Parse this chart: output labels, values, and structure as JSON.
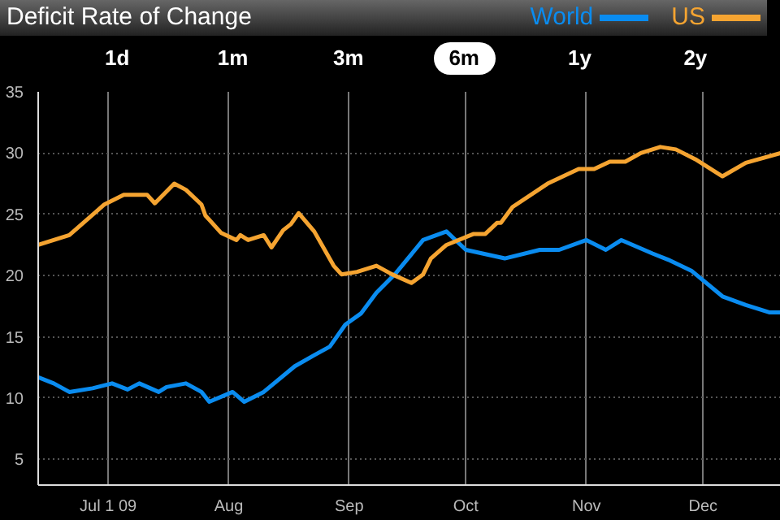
{
  "chart_data": {
    "type": "line",
    "title": "Deficit Rate of Change",
    "annotations": [
      "1d",
      "1m",
      "3m",
      "6m",
      "1y",
      "2y"
    ],
    "xlim": [
      "2009-06-13",
      "2009-12-21"
    ],
    "xticks": [
      {
        "value": "2009-07-01",
        "label": "Jul 1 09"
      },
      {
        "value": "2009-08-01",
        "label": "Aug"
      },
      {
        "value": "2009-09-01",
        "label": "Sep"
      },
      {
        "value": "2009-10-01",
        "label": "Oct"
      },
      {
        "value": "2009-11-01",
        "label": "Nov"
      },
      {
        "value": "2009-12-01",
        "label": "Dec"
      }
    ],
    "ylim": [
      2.9,
      35
    ],
    "yticks": [
      5,
      10,
      15,
      20,
      25,
      30,
      35
    ],
    "grid": true,
    "legend": "top right",
    "line_style": "solid",
    "series": [
      {
        "name": "World",
        "color": "#0a8cf0",
        "x": [
          "2009-06-13",
          "2009-06-17",
          "2009-06-21",
          "2009-06-27",
          "2009-07-02",
          "2009-07-06",
          "2009-07-09",
          "2009-07-14",
          "2009-07-16",
          "2009-07-21",
          "2009-07-25",
          "2009-07-27",
          "2009-08-02",
          "2009-08-05",
          "2009-08-10",
          "2009-08-18",
          "2009-08-23",
          "2009-08-27",
          "2009-08-31",
          "2009-09-04",
          "2009-09-08",
          "2009-09-13",
          "2009-09-20",
          "2009-09-26",
          "2009-10-01",
          "2009-10-11",
          "2009-10-20",
          "2009-10-25",
          "2009-11-01",
          "2009-11-06",
          "2009-11-10",
          "2009-11-18",
          "2009-11-22",
          "2009-11-28",
          "2009-12-06",
          "2009-12-12",
          "2009-12-18",
          "2009-12-21"
        ],
        "values": [
          11.7,
          11.2,
          10.5,
          10.8,
          11.2,
          10.7,
          11.2,
          10.5,
          10.9,
          11.2,
          10.5,
          9.7,
          10.5,
          9.7,
          10.5,
          12.6,
          13.5,
          14.2,
          16.0,
          16.9,
          18.6,
          20.2,
          22.9,
          23.6,
          22.1,
          21.4,
          22.1,
          22.1,
          22.9,
          22.1,
          22.9,
          21.8,
          21.3,
          20.4,
          18.3,
          17.6,
          17.0,
          17.0
        ]
      },
      {
        "name": "US",
        "color": "#f5a431",
        "x": [
          "2009-06-13",
          "2009-06-21",
          "2009-06-30",
          "2009-07-05",
          "2009-07-11",
          "2009-07-13",
          "2009-07-18",
          "2009-07-21",
          "2009-07-25",
          "2009-07-26",
          "2009-07-30",
          "2009-08-03",
          "2009-08-04",
          "2009-08-06",
          "2009-08-10",
          "2009-08-12",
          "2009-08-15",
          "2009-08-17",
          "2009-08-19",
          "2009-08-23",
          "2009-08-28",
          "2009-08-30",
          "2009-09-03",
          "2009-09-08",
          "2009-09-12",
          "2009-09-17",
          "2009-09-20",
          "2009-09-22",
          "2009-09-26",
          "2009-10-03",
          "2009-10-06",
          "2009-10-09",
          "2009-10-10",
          "2009-10-13",
          "2009-10-22",
          "2009-10-30",
          "2009-11-03",
          "2009-11-07",
          "2009-11-11",
          "2009-11-15",
          "2009-11-20",
          "2009-11-24",
          "2009-11-29",
          "2009-12-06",
          "2009-12-12",
          "2009-12-21"
        ],
        "values": [
          22.5,
          23.3,
          25.8,
          26.6,
          26.6,
          25.9,
          27.5,
          27.0,
          25.8,
          24.9,
          23.5,
          22.9,
          23.3,
          22.9,
          23.3,
          22.3,
          23.7,
          24.2,
          25.1,
          23.6,
          20.8,
          20.1,
          20.3,
          20.8,
          20.1,
          19.4,
          20.1,
          21.4,
          22.5,
          23.4,
          23.4,
          24.3,
          24.3,
          25.6,
          27.5,
          28.7,
          28.7,
          29.3,
          29.3,
          30.0,
          30.5,
          30.3,
          29.5,
          28.1,
          29.2,
          30.0
        ]
      }
    ]
  }
}
